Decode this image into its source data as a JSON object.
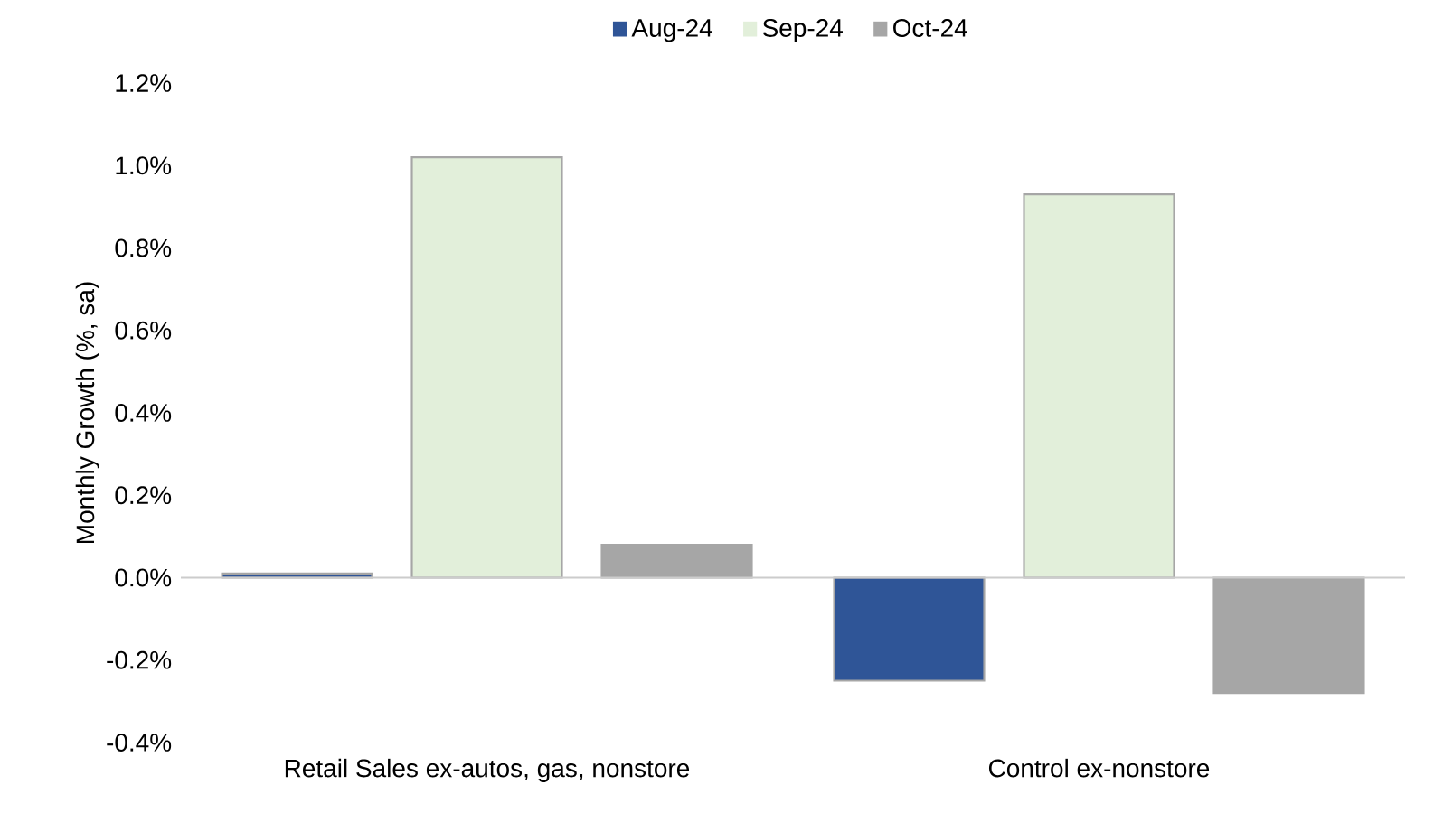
{
  "chart_data": {
    "type": "bar",
    "ylabel": "Monthly Growth  (%, sa)",
    "categories": [
      "Retail Sales ex-autos, gas, nonstore",
      "Control ex-nonstore"
    ],
    "series": [
      {
        "name": "Aug-24",
        "color": "#2f5597",
        "values": [
          0.01,
          -0.25
        ]
      },
      {
        "name": "Sep-24",
        "color": "#e2efda",
        "values": [
          1.02,
          0.93
        ]
      },
      {
        "name": "Oct-24",
        "color": "#a6a6a6",
        "values": [
          0.08,
          -0.28
        ]
      }
    ],
    "ylim": [
      -0.4,
      1.2
    ],
    "yticks": [
      {
        "value": -0.4,
        "label": "-0.4%"
      },
      {
        "value": -0.2,
        "label": "-0.2%"
      },
      {
        "value": 0,
        "label": "0.0%"
      },
      {
        "value": 0.2,
        "label": "0.2%"
      },
      {
        "value": 0.4,
        "label": "0.4%"
      },
      {
        "value": 0.6,
        "label": "0.6%"
      },
      {
        "value": 0.8,
        "label": "0.8%"
      },
      {
        "value": 1.0,
        "label": "1.0%"
      },
      {
        "value": 1.2,
        "label": "1.2%"
      }
    ],
    "legend": "top"
  }
}
